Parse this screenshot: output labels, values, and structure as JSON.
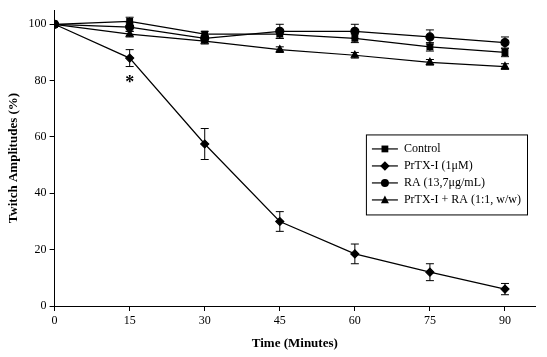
{
  "chart_data": {
    "type": "line",
    "x_label": "Time (Minutes)",
    "y_label": "Twitch Amplitudes (%)",
    "x": [
      0,
      15,
      30,
      45,
      60,
      75,
      90
    ],
    "xlim": [
      0,
      96
    ],
    "xticks": [
      0,
      15,
      30,
      45,
      60,
      75,
      90
    ],
    "ylim": [
      0,
      105
    ],
    "yticks": [
      0,
      20,
      40,
      60,
      80,
      100
    ],
    "grid": false,
    "legend": "right",
    "series": [
      {
        "name": "Control",
        "color": "#000000",
        "marker": "square",
        "line_style": "solid",
        "values": [
          100,
          101,
          96.5,
          96.5,
          95,
          92,
          90
        ],
        "errors": [
          0,
          1.5,
          1,
          1.5,
          1.5,
          1.5,
          1.5
        ]
      },
      {
        "name": "PrTX-I (1μM)",
        "color": "#000000",
        "marker": "diamond",
        "line_style": "solid",
        "values": [
          100,
          88,
          57.5,
          30,
          18.5,
          12,
          6
        ],
        "errors": [
          0,
          3,
          5.5,
          3.5,
          3.5,
          3,
          2
        ]
      },
      {
        "name": "RA (13,7μg/mL)",
        "color": "#000000",
        "marker": "circle",
        "line_style": "solid",
        "values": [
          100,
          99,
          95,
          97.5,
          97.5,
          95.5,
          93.5
        ],
        "errors": [
          0,
          1.5,
          1,
          2.5,
          2.5,
          2.5,
          2
        ]
      },
      {
        "name": "PrTX-I + RA (1:1, w/w)",
        "color": "#000000",
        "marker": "triangle",
        "line_style": "solid",
        "values": [
          100,
          96.5,
          94,
          91,
          89,
          86.5,
          85
        ],
        "errors": [
          0,
          1,
          1,
          1,
          1,
          1,
          1
        ]
      }
    ],
    "annotations": [
      {
        "text": "*",
        "x": 15,
        "y": 79
      }
    ]
  }
}
